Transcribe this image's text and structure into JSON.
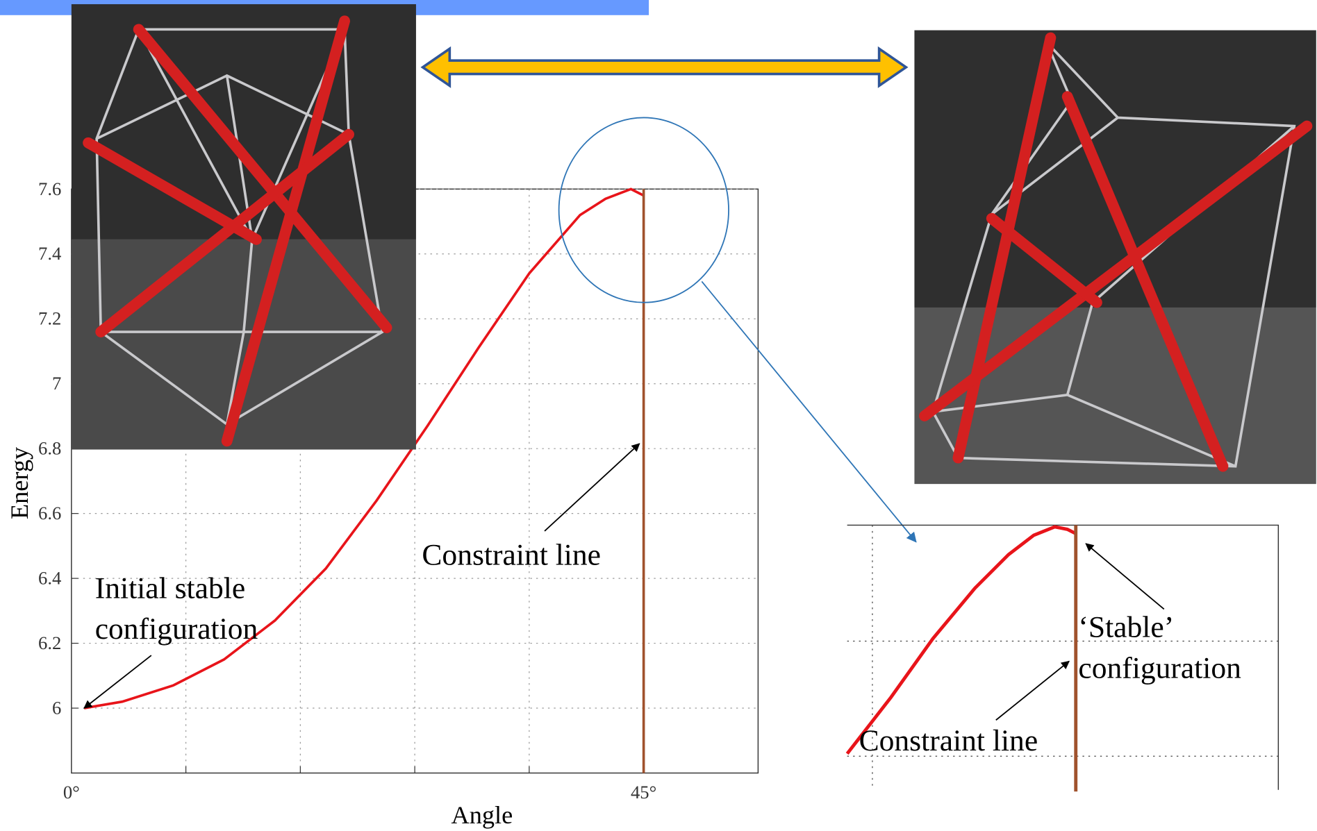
{
  "chart_data": {
    "type": "line",
    "xlabel": "Angle",
    "ylabel": "Energy",
    "x": [
      1,
      4,
      8,
      12,
      16,
      20,
      24,
      28,
      32,
      36,
      40,
      42,
      44,
      45
    ],
    "series": [
      {
        "color": "#e8141a",
        "values": [
          6.0,
          6.02,
          6.07,
          6.15,
          6.27,
          6.43,
          6.64,
          6.87,
          7.11,
          7.34,
          7.52,
          7.57,
          7.6,
          7.58
        ]
      }
    ],
    "xlim": [
      0,
      54
    ],
    "ylim": [
      5.8,
      7.6
    ],
    "xticks": [
      {
        "value": 0,
        "label": "0°"
      },
      {
        "value": 45,
        "label": "45°"
      }
    ],
    "xgrid": [
      9,
      18,
      27,
      36,
      45
    ],
    "yticks": [
      6,
      6.2,
      6.4,
      6.6,
      6.8,
      7,
      7.2,
      7.4,
      7.6
    ],
    "grid": true,
    "constraint": {
      "x": 45,
      "color": "#a0522d",
      "label": "Constraint line"
    },
    "annotation": [
      "Initial stable",
      "configuration"
    ]
  },
  "inset": {
    "label_top": [
      "‘Stable’",
      "configuration"
    ],
    "label_bottom": "Constraint line"
  }
}
